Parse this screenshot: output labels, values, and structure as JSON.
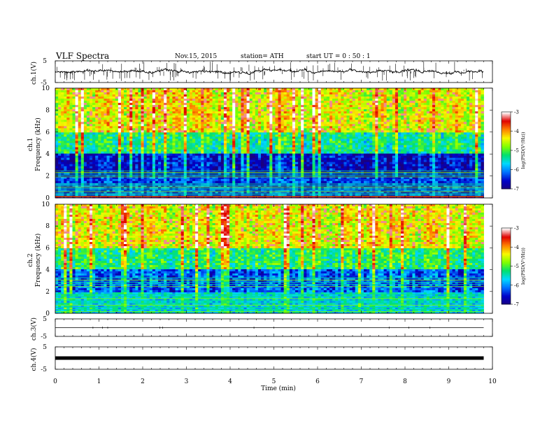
{
  "header": {
    "title": "VLF  Spectra",
    "date": "Nov.15, 2015",
    "station": "station= ATH",
    "start": "start  UT =   0 : 50 : 1"
  },
  "chart_data": [
    {
      "id": "ch1_waveform",
      "type": "line",
      "ylabel": "ch.1(V)",
      "ylim": [
        -5,
        5
      ],
      "yticks": [
        "5",
        "-5"
      ],
      "baseline": 0.2,
      "xlim": [
        0,
        10
      ],
      "x_end": 9.8
    },
    {
      "id": "ch1_spectrogram",
      "type": "heatmap",
      "ylabel_top": "ch.1",
      "ylabel": "Frequency  (kHz)",
      "ylim": [
        0,
        10
      ],
      "yticks": [
        "0",
        "2",
        "4",
        "6",
        "8",
        "10"
      ],
      "xlim": [
        0,
        10
      ],
      "x_end": 9.8,
      "colorbar": {
        "label": "log(PSD(V²/Hz))",
        "range": [
          -7,
          -3
        ],
        "ticks": [
          "-3",
          "-4",
          "-5",
          "-6",
          "-7"
        ]
      },
      "band_levels_log_psd": [
        {
          "f": [
            0,
            2
          ],
          "level": -6.3
        },
        {
          "f": [
            2,
            4
          ],
          "level": -6.6
        },
        {
          "f": [
            4,
            6
          ],
          "level": -5.3
        },
        {
          "f": [
            6,
            10
          ],
          "level": -4.4
        }
      ]
    },
    {
      "id": "ch2_spectrogram",
      "type": "heatmap",
      "ylabel_top": "ch.2",
      "ylabel": "Frequency  (kHz)",
      "ylim": [
        0,
        10
      ],
      "yticks": [
        "0",
        "2",
        "4",
        "6",
        "8",
        "10"
      ],
      "xlim": [
        0,
        10
      ],
      "x_end": 9.8,
      "colorbar": {
        "label": "log(PSD(V²/Hz))",
        "range": [
          -7,
          -3
        ],
        "ticks": [
          "-3",
          "-4",
          "-5",
          "-6",
          "-7"
        ]
      },
      "band_levels_log_psd": [
        {
          "f": [
            0,
            2
          ],
          "level": -5.6
        },
        {
          "f": [
            2,
            4
          ],
          "level": -6.2
        },
        {
          "f": [
            4,
            6
          ],
          "level": -5.2
        },
        {
          "f": [
            6,
            10
          ],
          "level": -4.4
        }
      ]
    },
    {
      "id": "ch3_waveform",
      "type": "line",
      "ylabel": "ch.3(V)",
      "ylim": [
        -5,
        5
      ],
      "yticks": [
        "5",
        "-5"
      ],
      "baseline": 0.0,
      "xlim": [
        0,
        10
      ],
      "x_end": 9.8
    },
    {
      "id": "ch4_waveform",
      "type": "line",
      "ylabel": "ch.4(V)",
      "ylim": [
        -5,
        5
      ],
      "yticks": [
        "5",
        "-5"
      ],
      "baseline": 0.0,
      "xlim": [
        0,
        10
      ],
      "x_end": 9.8
    }
  ],
  "x_axis": {
    "label": "Time  (min)",
    "ticks": [
      "0",
      "1",
      "2",
      "3",
      "4",
      "5",
      "6",
      "7",
      "8",
      "9",
      "10"
    ]
  },
  "colors": {
    "colormap": [
      "#1a0080",
      "#0000c8",
      "#0070ff",
      "#00d8ff",
      "#00e070",
      "#80ff00",
      "#f8f800",
      "#ff8000",
      "#e00000",
      "#ffffff"
    ]
  }
}
